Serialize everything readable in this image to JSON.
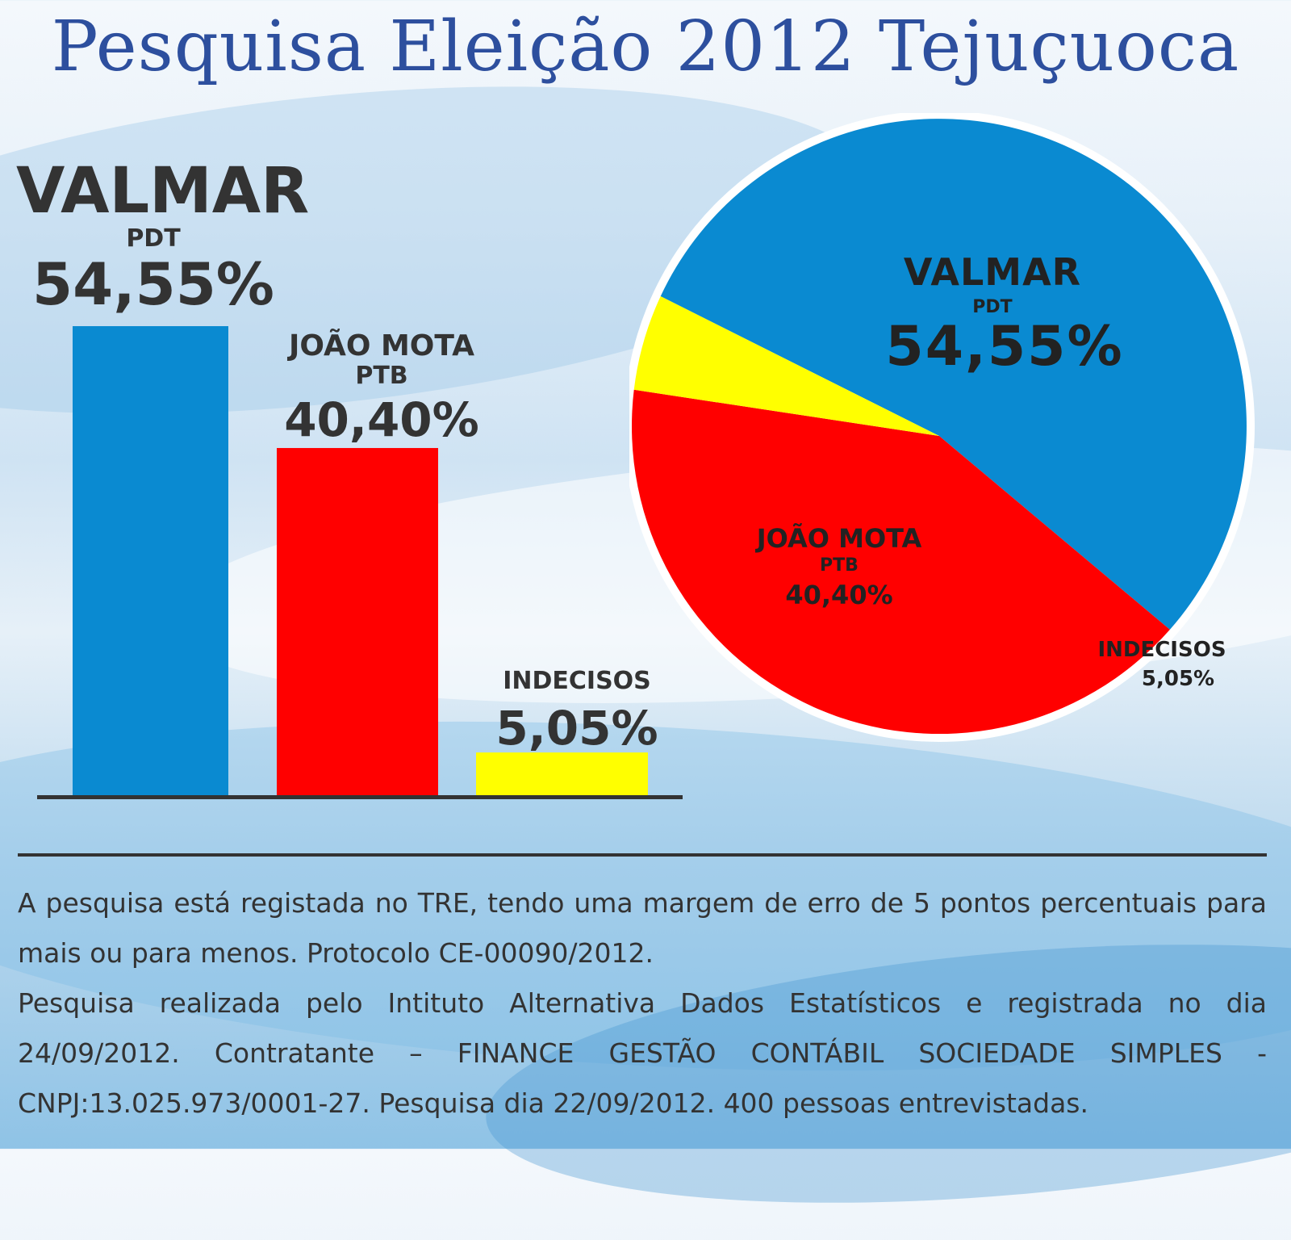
{
  "title": "Pesquisa Eleição 2012 Tejuçuoca",
  "chart_data": [
    {
      "type": "bar",
      "categories": [
        "VALMAR",
        "JOÃO MOTA",
        "INDECISOS"
      ],
      "parties": [
        "PDT",
        "PTB",
        ""
      ],
      "values": [
        54.55,
        40.4,
        5.05
      ],
      "value_labels": [
        "54,55%",
        "40,40%",
        "5,05%"
      ],
      "colors": [
        "#0a8ad1",
        "#ff0000",
        "#ffff00"
      ],
      "ylim": [
        0,
        54.55
      ],
      "grid": false
    },
    {
      "type": "pie",
      "categories": [
        "VALMAR",
        "JOÃO MOTA",
        "INDECISOS"
      ],
      "parties": [
        "PDT",
        "PTB",
        ""
      ],
      "values": [
        54.55,
        40.4,
        5.05
      ],
      "value_labels": [
        "54,55%",
        "40,40%",
        "5,05%"
      ],
      "colors": [
        "#0a8ad1",
        "#ff0000",
        "#ffff00"
      ]
    }
  ],
  "footer": {
    "line1": "A pesquisa está registada no TRE, tendo uma margem de erro de 5 pontos percentuais para mais ou para menos. Protocolo CE-00090/2012.",
    "line2": "Pesquisa realizada pelo Intituto Alternativa Dados Estatísticos e registrada no dia 24/09/2012. Contratante – FINANCE GESTÃO CONTÁBIL SOCIEDADE SIMPLES - CNPJ:13.025.973/0001-27. Pesquisa dia 22/09/2012. 400 pessoas entrevistadas."
  }
}
